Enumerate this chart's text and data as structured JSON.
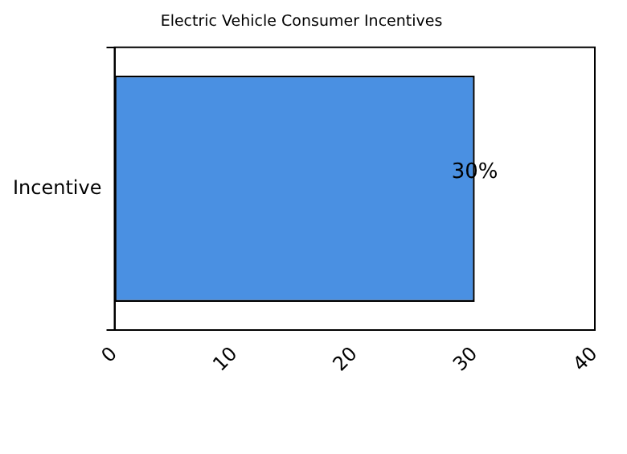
{
  "chart_data": {
    "type": "bar",
    "orientation": "horizontal",
    "title": "Electric Vehicle Consumer Incentives",
    "categories": [
      "Incentive"
    ],
    "values": [
      30
    ],
    "color": "#4a90e2",
    "value_labels": [
      "30%"
    ],
    "xlim": [
      0,
      40
    ],
    "xticks": [
      0,
      10,
      20,
      30,
      40
    ],
    "grid": false,
    "legend": false
  }
}
